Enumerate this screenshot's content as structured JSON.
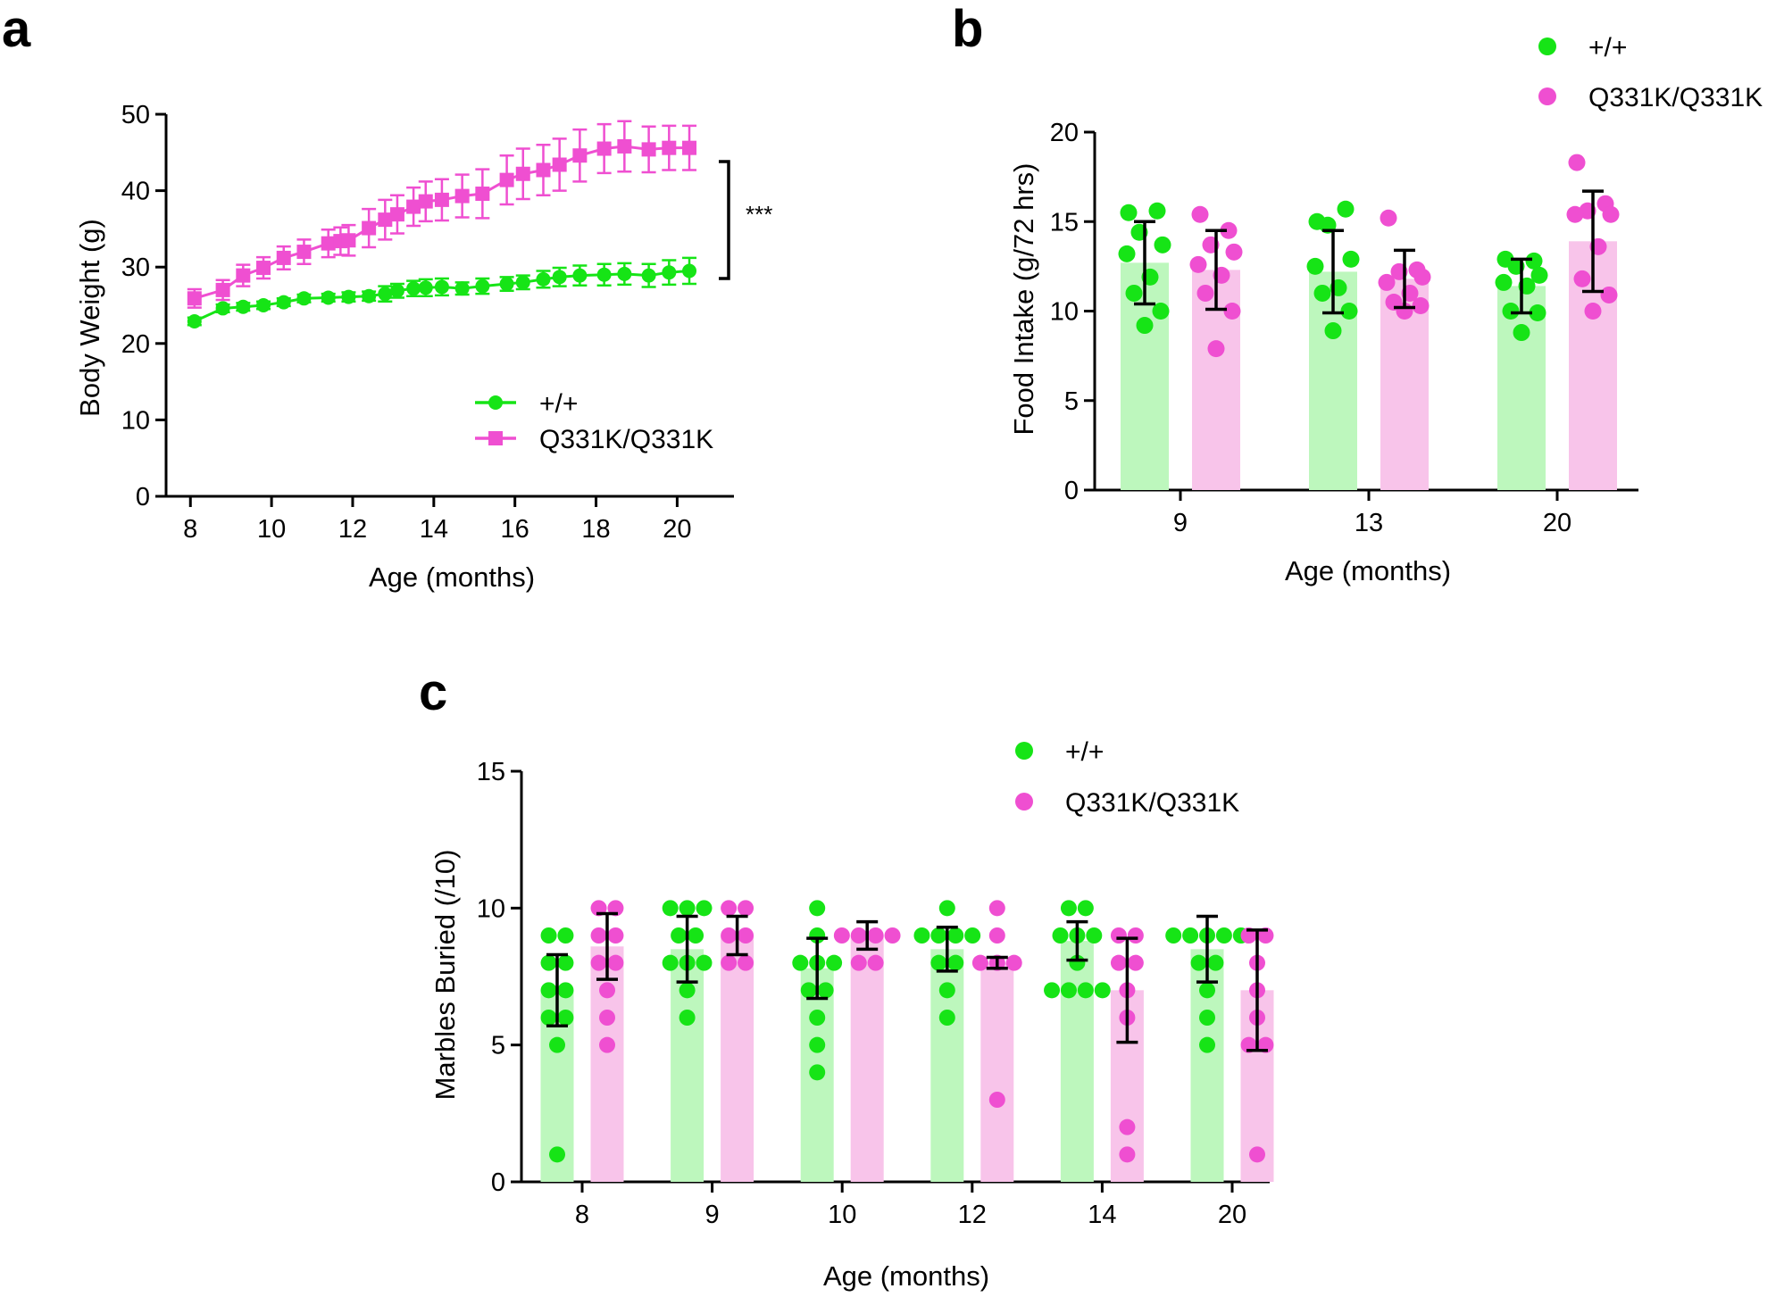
{
  "colors": {
    "wt": "#16e416",
    "mut": "#ef4fd1",
    "wt_bar": "#bdf7bd",
    "mut_bar": "#f8c4ea",
    "axis": "#000000"
  },
  "chart_data": [
    {
      "id": "a",
      "panel_label": "a",
      "type": "line",
      "xlabel": "Age (months)",
      "ylabel": "Body Weight (g)",
      "xlim": [
        7.4,
        21.4
      ],
      "ylim": [
        0,
        50
      ],
      "xticks": [
        "8",
        "10",
        "12",
        "14",
        "16",
        "18",
        "20"
      ],
      "yticks": [
        "0",
        "10",
        "20",
        "30",
        "40",
        "50"
      ],
      "legend": [
        "+/+",
        "Q331K/Q331K"
      ],
      "legend_position": "bottom-right",
      "significance": "***",
      "series": [
        {
          "name": "+/+",
          "marker": "circle",
          "x": [
            8.1,
            8.8,
            9.3,
            9.8,
            10.3,
            10.8,
            11.4,
            11.9,
            12.4,
            12.8,
            13.1,
            13.5,
            13.8,
            14.2,
            14.7,
            15.2,
            15.8,
            16.2,
            16.7,
            17.1,
            17.6,
            18.2,
            18.7,
            19.3,
            19.8,
            20.3
          ],
          "y": [
            22.9,
            24.6,
            24.8,
            25.0,
            25.4,
            25.9,
            26.0,
            26.1,
            26.2,
            26.5,
            26.9,
            27.2,
            27.3,
            27.4,
            27.2,
            27.5,
            27.8,
            28.0,
            28.4,
            28.7,
            28.9,
            29.0,
            29.1,
            28.9,
            29.3,
            29.5
          ],
          "err": [
            0.5,
            0.5,
            0.5,
            0.5,
            0.5,
            0.5,
            0.5,
            0.6,
            0.6,
            1.0,
            0.9,
            1.0,
            1.1,
            1.1,
            0.8,
            1.0,
            0.9,
            0.9,
            1.1,
            1.2,
            1.3,
            1.4,
            1.4,
            1.5,
            1.6,
            1.7
          ],
          "marker_color": "#16e416"
        },
        {
          "name": "Q331K/Q331K",
          "marker": "square",
          "x": [
            8.1,
            8.8,
            9.3,
            9.8,
            10.3,
            10.8,
            11.4,
            11.7,
            11.9,
            12.4,
            12.8,
            13.1,
            13.5,
            13.8,
            14.2,
            14.7,
            15.2,
            15.8,
            16.2,
            16.7,
            17.1,
            17.6,
            18.2,
            18.7,
            19.3,
            19.8,
            20.3
          ],
          "y": [
            25.9,
            27.0,
            28.9,
            29.9,
            31.2,
            32.0,
            33.1,
            33.4,
            33.5,
            35.1,
            36.2,
            36.9,
            37.9,
            38.6,
            38.8,
            39.3,
            39.6,
            41.4,
            42.2,
            42.7,
            43.4,
            44.6,
            45.5,
            45.8,
            45.4,
            45.6,
            45.6
          ],
          "err": [
            1.2,
            1.3,
            1.4,
            1.4,
            1.5,
            1.6,
            1.8,
            1.8,
            2.0,
            2.5,
            2.6,
            2.5,
            2.5,
            2.6,
            2.7,
            2.8,
            3.2,
            3.2,
            3.3,
            3.3,
            3.4,
            3.4,
            3.2,
            3.3,
            3.0,
            2.9,
            2.9
          ],
          "marker_color": "#ef4fd1"
        }
      ]
    },
    {
      "id": "b",
      "panel_label": "b",
      "type": "bar",
      "xlabel": "Age (months)",
      "ylabel": "Food Intake (g/72 hrs)",
      "ylim": [
        0,
        20
      ],
      "yticks": [
        "0",
        "5",
        "10",
        "15",
        "20"
      ],
      "categories": [
        "9",
        "13",
        "20"
      ],
      "legend": [
        "+/+",
        "Q331K/Q331K"
      ],
      "legend_position": "top-right",
      "series": [
        {
          "name": "+/+",
          "means": [
            12.7,
            12.2,
            11.4
          ],
          "sd": [
            2.3,
            2.3,
            1.5
          ],
          "points": [
            [
              15.5,
              15.6,
              14.4,
              13.7,
              13.2,
              11.9,
              11.0,
              10.0,
              9.2
            ],
            [
              15.0,
              15.7,
              14.8,
              12.9,
              12.5,
              11.3,
              11.0,
              10.0,
              8.9
            ],
            [
              12.9,
              12.8,
              12.5,
              12.0,
              11.6,
              11.4,
              10.0,
              9.9,
              8.8
            ]
          ]
        },
        {
          "name": "Q331K/Q331K",
          "means": [
            12.3,
            11.8,
            13.9
          ],
          "sd": [
            2.2,
            1.6,
            2.8
          ],
          "points": [
            [
              15.4,
              14.5,
              13.7,
              13.3,
              12.6,
              12.0,
              11.0,
              10.0,
              7.9
            ],
            [
              15.2,
              12.3,
              12.2,
              11.9,
              11.6,
              11.0,
              10.5,
              10.3,
              10.0
            ],
            [
              18.3,
              16.0,
              15.6,
              15.4,
              15.4,
              13.6,
              11.8,
              10.9,
              10.0
            ]
          ]
        }
      ]
    },
    {
      "id": "c",
      "panel_label": "c",
      "type": "bar",
      "xlabel": "Age (months)",
      "ylabel": "Marbles Buried (/10)",
      "ylim": [
        0,
        15
      ],
      "yticks": [
        "0",
        "5",
        "10",
        "15"
      ],
      "categories": [
        "8",
        "9",
        "10",
        "12",
        "14",
        "20"
      ],
      "legend": [
        "+/+",
        "Q331K/Q331K"
      ],
      "legend_position": "top-right",
      "series": [
        {
          "name": "+/+",
          "means": [
            7.0,
            8.5,
            7.8,
            8.5,
            8.8,
            8.5
          ],
          "sd": [
            1.3,
            1.2,
            1.1,
            0.8,
            0.7,
            1.2
          ],
          "points": [
            [
              9,
              9,
              8,
              8,
              7,
              7,
              6,
              6,
              5,
              1
            ],
            [
              10,
              10,
              10,
              9,
              9,
              8,
              8,
              8,
              7,
              6
            ],
            [
              10,
              9,
              8,
              8,
              8,
              7,
              7,
              6,
              5,
              4
            ],
            [
              10,
              9,
              9,
              9,
              9,
              8,
              8,
              7,
              6
            ],
            [
              10,
              10,
              9,
              9,
              9,
              8,
              7,
              7,
              7,
              7
            ],
            [
              9,
              9,
              9,
              9,
              9,
              8,
              8,
              7,
              6,
              5
            ]
          ]
        },
        {
          "name": "Q331K/Q331K",
          "means": [
            8.6,
            9.0,
            9.0,
            8.0,
            7.0,
            7.0
          ],
          "sd": [
            1.2,
            0.7,
            0.5,
            0.2,
            1.9,
            2.2
          ],
          "points": [
            [
              10,
              10,
              9,
              9,
              8,
              8,
              7,
              6,
              5
            ],
            [
              10,
              10,
              9,
              9,
              8,
              8
            ],
            [
              9,
              9,
              9,
              9,
              8,
              8
            ],
            [
              10,
              9,
              8,
              8,
              8,
              3
            ],
            [
              9,
              9,
              8,
              8,
              7,
              6,
              2,
              1
            ],
            [
              9,
              9,
              8,
              7,
              6,
              5,
              5,
              1
            ]
          ]
        }
      ]
    }
  ]
}
